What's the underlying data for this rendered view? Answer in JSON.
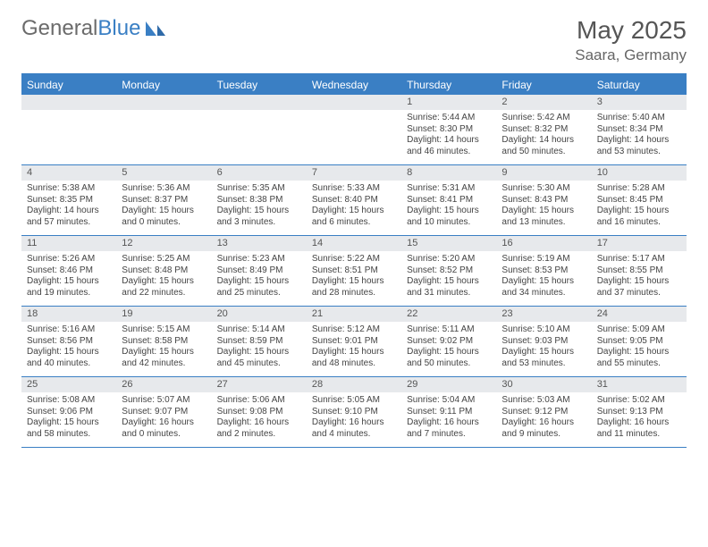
{
  "brand": {
    "part1": "General",
    "part2": "Blue"
  },
  "title": "May 2025",
  "location": "Saara, Germany",
  "header_bg": "#3a7fc4",
  "header_text_color": "#ffffff",
  "daynum_bg": "#e7e9ec",
  "border_color": "#3a7fc4",
  "day_names": [
    "Sunday",
    "Monday",
    "Tuesday",
    "Wednesday",
    "Thursday",
    "Friday",
    "Saturday"
  ],
  "weeks": [
    [
      null,
      null,
      null,
      null,
      {
        "n": "1",
        "sr": "Sunrise: 5:44 AM",
        "ss": "Sunset: 8:30 PM",
        "d1": "Daylight: 14 hours",
        "d2": "and 46 minutes."
      },
      {
        "n": "2",
        "sr": "Sunrise: 5:42 AM",
        "ss": "Sunset: 8:32 PM",
        "d1": "Daylight: 14 hours",
        "d2": "and 50 minutes."
      },
      {
        "n": "3",
        "sr": "Sunrise: 5:40 AM",
        "ss": "Sunset: 8:34 PM",
        "d1": "Daylight: 14 hours",
        "d2": "and 53 minutes."
      }
    ],
    [
      {
        "n": "4",
        "sr": "Sunrise: 5:38 AM",
        "ss": "Sunset: 8:35 PM",
        "d1": "Daylight: 14 hours",
        "d2": "and 57 minutes."
      },
      {
        "n": "5",
        "sr": "Sunrise: 5:36 AM",
        "ss": "Sunset: 8:37 PM",
        "d1": "Daylight: 15 hours",
        "d2": "and 0 minutes."
      },
      {
        "n": "6",
        "sr": "Sunrise: 5:35 AM",
        "ss": "Sunset: 8:38 PM",
        "d1": "Daylight: 15 hours",
        "d2": "and 3 minutes."
      },
      {
        "n": "7",
        "sr": "Sunrise: 5:33 AM",
        "ss": "Sunset: 8:40 PM",
        "d1": "Daylight: 15 hours",
        "d2": "and 6 minutes."
      },
      {
        "n": "8",
        "sr": "Sunrise: 5:31 AM",
        "ss": "Sunset: 8:41 PM",
        "d1": "Daylight: 15 hours",
        "d2": "and 10 minutes."
      },
      {
        "n": "9",
        "sr": "Sunrise: 5:30 AM",
        "ss": "Sunset: 8:43 PM",
        "d1": "Daylight: 15 hours",
        "d2": "and 13 minutes."
      },
      {
        "n": "10",
        "sr": "Sunrise: 5:28 AM",
        "ss": "Sunset: 8:45 PM",
        "d1": "Daylight: 15 hours",
        "d2": "and 16 minutes."
      }
    ],
    [
      {
        "n": "11",
        "sr": "Sunrise: 5:26 AM",
        "ss": "Sunset: 8:46 PM",
        "d1": "Daylight: 15 hours",
        "d2": "and 19 minutes."
      },
      {
        "n": "12",
        "sr": "Sunrise: 5:25 AM",
        "ss": "Sunset: 8:48 PM",
        "d1": "Daylight: 15 hours",
        "d2": "and 22 minutes."
      },
      {
        "n": "13",
        "sr": "Sunrise: 5:23 AM",
        "ss": "Sunset: 8:49 PM",
        "d1": "Daylight: 15 hours",
        "d2": "and 25 minutes."
      },
      {
        "n": "14",
        "sr": "Sunrise: 5:22 AM",
        "ss": "Sunset: 8:51 PM",
        "d1": "Daylight: 15 hours",
        "d2": "and 28 minutes."
      },
      {
        "n": "15",
        "sr": "Sunrise: 5:20 AM",
        "ss": "Sunset: 8:52 PM",
        "d1": "Daylight: 15 hours",
        "d2": "and 31 minutes."
      },
      {
        "n": "16",
        "sr": "Sunrise: 5:19 AM",
        "ss": "Sunset: 8:53 PM",
        "d1": "Daylight: 15 hours",
        "d2": "and 34 minutes."
      },
      {
        "n": "17",
        "sr": "Sunrise: 5:17 AM",
        "ss": "Sunset: 8:55 PM",
        "d1": "Daylight: 15 hours",
        "d2": "and 37 minutes."
      }
    ],
    [
      {
        "n": "18",
        "sr": "Sunrise: 5:16 AM",
        "ss": "Sunset: 8:56 PM",
        "d1": "Daylight: 15 hours",
        "d2": "and 40 minutes."
      },
      {
        "n": "19",
        "sr": "Sunrise: 5:15 AM",
        "ss": "Sunset: 8:58 PM",
        "d1": "Daylight: 15 hours",
        "d2": "and 42 minutes."
      },
      {
        "n": "20",
        "sr": "Sunrise: 5:14 AM",
        "ss": "Sunset: 8:59 PM",
        "d1": "Daylight: 15 hours",
        "d2": "and 45 minutes."
      },
      {
        "n": "21",
        "sr": "Sunrise: 5:12 AM",
        "ss": "Sunset: 9:01 PM",
        "d1": "Daylight: 15 hours",
        "d2": "and 48 minutes."
      },
      {
        "n": "22",
        "sr": "Sunrise: 5:11 AM",
        "ss": "Sunset: 9:02 PM",
        "d1": "Daylight: 15 hours",
        "d2": "and 50 minutes."
      },
      {
        "n": "23",
        "sr": "Sunrise: 5:10 AM",
        "ss": "Sunset: 9:03 PM",
        "d1": "Daylight: 15 hours",
        "d2": "and 53 minutes."
      },
      {
        "n": "24",
        "sr": "Sunrise: 5:09 AM",
        "ss": "Sunset: 9:05 PM",
        "d1": "Daylight: 15 hours",
        "d2": "and 55 minutes."
      }
    ],
    [
      {
        "n": "25",
        "sr": "Sunrise: 5:08 AM",
        "ss": "Sunset: 9:06 PM",
        "d1": "Daylight: 15 hours",
        "d2": "and 58 minutes."
      },
      {
        "n": "26",
        "sr": "Sunrise: 5:07 AM",
        "ss": "Sunset: 9:07 PM",
        "d1": "Daylight: 16 hours",
        "d2": "and 0 minutes."
      },
      {
        "n": "27",
        "sr": "Sunrise: 5:06 AM",
        "ss": "Sunset: 9:08 PM",
        "d1": "Daylight: 16 hours",
        "d2": "and 2 minutes."
      },
      {
        "n": "28",
        "sr": "Sunrise: 5:05 AM",
        "ss": "Sunset: 9:10 PM",
        "d1": "Daylight: 16 hours",
        "d2": "and 4 minutes."
      },
      {
        "n": "29",
        "sr": "Sunrise: 5:04 AM",
        "ss": "Sunset: 9:11 PM",
        "d1": "Daylight: 16 hours",
        "d2": "and 7 minutes."
      },
      {
        "n": "30",
        "sr": "Sunrise: 5:03 AM",
        "ss": "Sunset: 9:12 PM",
        "d1": "Daylight: 16 hours",
        "d2": "and 9 minutes."
      },
      {
        "n": "31",
        "sr": "Sunrise: 5:02 AM",
        "ss": "Sunset: 9:13 PM",
        "d1": "Daylight: 16 hours",
        "d2": "and 11 minutes."
      }
    ]
  ]
}
